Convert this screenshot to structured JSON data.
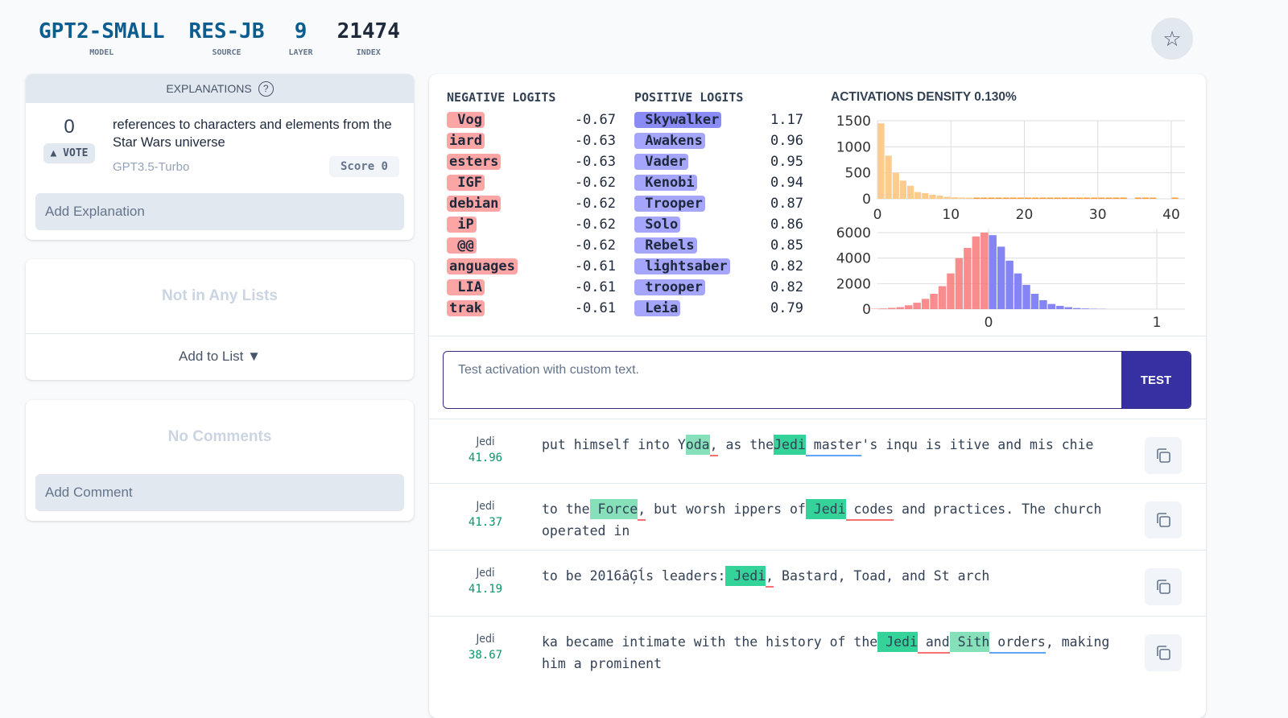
{
  "header": {
    "model": "GPT2-SMALL",
    "model_label": "MODEL",
    "source": "RES-JB",
    "source_label": "SOURCE",
    "layer": "9",
    "layer_label": "LAYER",
    "index": "21474",
    "index_label": "INDEX",
    "star_icon": "star-icon"
  },
  "explanations": {
    "title": "EXPLANATIONS",
    "help_icon": "?",
    "votes": "0",
    "vote_label": "▲ VOTE",
    "text": "references to characters and elements from the Star Wars universe",
    "author": "GPT3.5-Turbo",
    "score": "Score 0",
    "add_placeholder": "Add Explanation"
  },
  "lists": {
    "empty": "Not in Any Lists",
    "add": "Add to List ▼"
  },
  "comments": {
    "empty": "No Comments",
    "add_placeholder": "Add Comment"
  },
  "negative_logits": {
    "title": "NEGATIVE LOGITS",
    "color": "#fca5a5",
    "items": [
      {
        "token": " Vog",
        "value": "-0.67"
      },
      {
        "token": "iard",
        "value": "-0.63"
      },
      {
        "token": "esters",
        "value": "-0.63"
      },
      {
        "token": " IGF",
        "value": "-0.62"
      },
      {
        "token": "debian",
        "value": "-0.62"
      },
      {
        "token": " iP",
        "value": "-0.62"
      },
      {
        "token": " @@",
        "value": "-0.62"
      },
      {
        "token": "anguages",
        "value": "-0.61"
      },
      {
        "token": " LIA",
        "value": "-0.61"
      },
      {
        "token": "trak",
        "value": "-0.61"
      }
    ]
  },
  "positive_logits": {
    "title": "POSITIVE LOGITS",
    "color": "#a5a5fb",
    "items": [
      {
        "token": " Skywalker",
        "value": "1.17"
      },
      {
        "token": " Awakens",
        "value": "0.96"
      },
      {
        "token": " Vader",
        "value": "0.95"
      },
      {
        "token": " Kenobi",
        "value": "0.94"
      },
      {
        "token": " Trooper",
        "value": "0.87"
      },
      {
        "token": " Solo",
        "value": "0.86"
      },
      {
        "token": " Rebels",
        "value": "0.85"
      },
      {
        "token": " lightsaber",
        "value": "0.82"
      },
      {
        "token": " trooper",
        "value": "0.82"
      },
      {
        "token": " Leia",
        "value": "0.79"
      }
    ]
  },
  "density": {
    "title": "ACTIVATIONS DENSITY 0.130%"
  },
  "chart_data": [
    {
      "type": "bar",
      "xlim": [
        0,
        42
      ],
      "ylim": [
        0,
        1500
      ],
      "xticks": [
        "0",
        "10",
        "20",
        "30",
        "40"
      ],
      "yticks": [
        "0",
        "500",
        "1000",
        "1500"
      ],
      "color": "#fdcb8c",
      "bin_width": 1,
      "values": [
        1450,
        830,
        500,
        350,
        250,
        130,
        110,
        80,
        60,
        40,
        30,
        25,
        20,
        8,
        8,
        8,
        8,
        8,
        8,
        8,
        8,
        8,
        8,
        8,
        8,
        8,
        8,
        8,
        8,
        8,
        8,
        8,
        8,
        8,
        0,
        8,
        8,
        8,
        0,
        0,
        8,
        0
      ]
    },
    {
      "type": "bar",
      "xlim": [
        -0.66,
        1.17
      ],
      "ylim": [
        0,
        6000
      ],
      "xticks": [
        "0",
        "1"
      ],
      "yticks": [
        "0",
        "2000",
        "4000",
        "6000"
      ],
      "bin_width": 0.05,
      "neg_color": "#f87171",
      "pos_color": "#8484f5",
      "neg_values": [
        20,
        30,
        50,
        100,
        150,
        300,
        500,
        800,
        1200,
        1800,
        2800,
        4000,
        4800,
        5700,
        6000
      ],
      "pos_values": [
        5800,
        4900,
        3800,
        2800,
        1900,
        1200,
        700,
        400,
        250,
        150,
        80,
        50,
        30,
        20
      ]
    }
  ],
  "test": {
    "placeholder": "Test activation with custom text.",
    "button": "TEST"
  },
  "examples": [
    {
      "token": "Jedi",
      "act": "41.96",
      "tokens": [
        [
          "put himself into Y",
          0,
          ""
        ],
        [
          "oda",
          1,
          ""
        ],
        [
          ",",
          0,
          "r"
        ],
        [
          " as the",
          0,
          ""
        ],
        [
          "Jedi",
          2,
          ""
        ],
        [
          " master",
          0,
          "b"
        ],
        [
          "'s inqu is itive and mis chie",
          0,
          ""
        ]
      ]
    },
    {
      "token": "Jedi",
      "act": "41.37",
      "tokens": [
        [
          "to the",
          0,
          ""
        ],
        [
          " Force",
          1,
          ""
        ],
        [
          ",",
          0,
          "r"
        ],
        [
          " but worsh ippers of",
          0,
          ""
        ],
        [
          " Jedi",
          2,
          ""
        ],
        [
          " codes",
          0,
          "r"
        ],
        [
          " and practices. The church operated in",
          0,
          ""
        ]
      ]
    },
    {
      "token": "Jedi",
      "act": "41.19",
      "tokens": [
        [
          "to be 2016âĢĺs leaders:",
          0,
          ""
        ],
        [
          " Jedi",
          2,
          ""
        ],
        [
          ",",
          0,
          "r"
        ],
        [
          " Bastard, Toad, and St arch",
          0,
          ""
        ]
      ]
    },
    {
      "token": "Jedi",
      "act": "38.67",
      "tokens": [
        [
          "ka became intimate with the history of the",
          0,
          ""
        ],
        [
          " Jedi",
          2,
          ""
        ],
        [
          " and",
          0,
          "r"
        ],
        [
          " Sith",
          1,
          ""
        ],
        [
          " orders",
          0,
          "b"
        ],
        [
          ", making him a prominent",
          0,
          ""
        ]
      ]
    }
  ]
}
